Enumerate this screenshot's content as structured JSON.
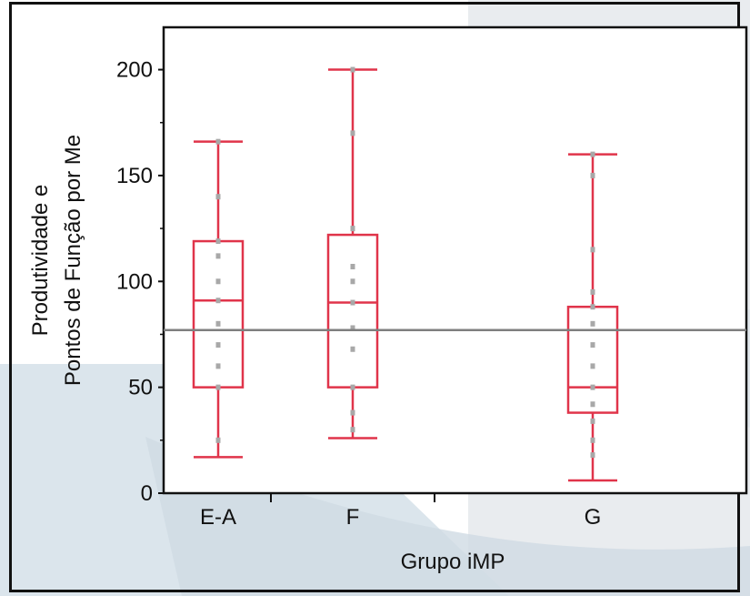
{
  "chart_data": {
    "type": "box",
    "xlabel": "Grupo iMP",
    "ylabel": [
      "Produtividade e",
      "Pontos de Função por Me"
    ],
    "categories": [
      "E-A",
      "F",
      "G"
    ],
    "ylim": [
      0,
      220
    ],
    "y_ticks": [
      0,
      50,
      100,
      150,
      200
    ],
    "y_tick_labels": [
      "0",
      "50",
      "100",
      "150",
      "200"
    ],
    "grid": false,
    "reference_line": 77,
    "boxes": [
      {
        "category": "E-A",
        "min": 17,
        "q1": 50,
        "median": 91,
        "q3": 119,
        "max": 166,
        "points": [
          25,
          50,
          60,
          70,
          80,
          91,
          100,
          112,
          119,
          140,
          166
        ]
      },
      {
        "category": "F",
        "min": 26,
        "q1": 50,
        "median": 90,
        "q3": 122,
        "max": 200,
        "points": [
          30,
          38,
          50,
          68,
          78,
          90,
          100,
          107,
          125,
          170,
          200
        ]
      },
      {
        "category": "G",
        "min": 6,
        "q1": 38,
        "median": 50,
        "q3": 88,
        "max": 160,
        "points": [
          18,
          25,
          34,
          42,
          50,
          60,
          70,
          80,
          88,
          95,
          115,
          150,
          160
        ]
      }
    ],
    "colors": {
      "box": "#e0344a",
      "points": "#a8a8a8",
      "reference_line": "#7f7f7f",
      "frame": "#111111"
    }
  }
}
